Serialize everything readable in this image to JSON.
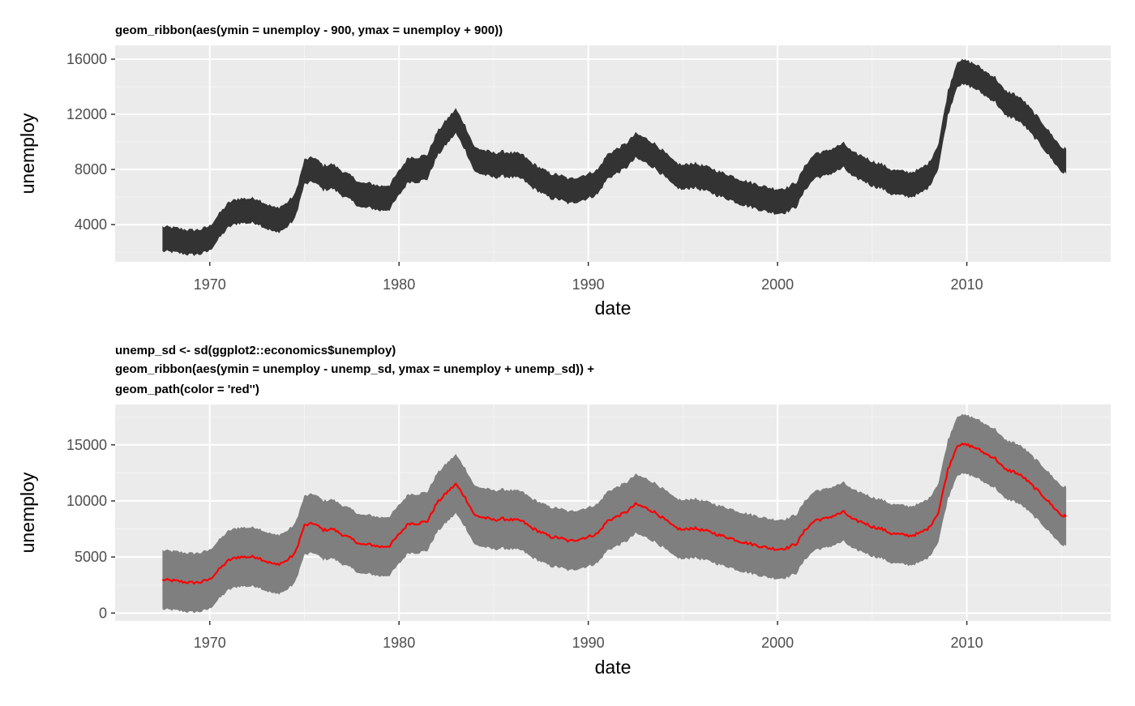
{
  "theme": {
    "panel_bg": "#ebebeb",
    "grid_major": "#ffffff",
    "grid_minor": "#f4f4f4",
    "ribbon_dark": "#333333",
    "ribbon_grey": "#7f7f7f",
    "line_red": "#ff0000",
    "tick_text": "#4d4d4d",
    "tick_mark": "#333333"
  },
  "chart_data": [
    {
      "type": "area",
      "title_lines": [
        "geom_ribbon(aes(ymin = unemploy - 900, ymax = unemploy + 900))"
      ],
      "xlabel": "date",
      "ylabel": "unemploy",
      "x_axis": "date",
      "xlim": [
        1965.0,
        2017.6
      ],
      "ylim": [
        1300,
        17000
      ],
      "xticks": [
        1970,
        1980,
        1990,
        2000,
        2010
      ],
      "xtick_labels": [
        "1970",
        "1980",
        "1990",
        "2000",
        "2010"
      ],
      "yticks": [
        4000,
        8000,
        12000,
        16000
      ],
      "ytick_labels": [
        "4000",
        "8000",
        "12000",
        "16000"
      ],
      "grid": true,
      "legend": "none",
      "band_offset": 900,
      "series": [
        {
          "role": "ribbon",
          "color": "#333333"
        }
      ]
    },
    {
      "type": "area",
      "title_lines": [
        "unemp_sd <- sd(ggplot2::economics$unemploy)",
        " geom_ribbon(aes(ymin = unemploy - unemp_sd, ymax = unemploy + unemp_sd)) +",
        "  geom_path(color = 'red'')"
      ],
      "xlabel": "date",
      "ylabel": "unemploy",
      "x_axis": "date",
      "xlim": [
        1965.0,
        2017.6
      ],
      "ylim": [
        -700,
        18600
      ],
      "xticks": [
        1970,
        1980,
        1990,
        2000,
        2010
      ],
      "xtick_labels": [
        "1970",
        "1980",
        "1990",
        "2000",
        "2010"
      ],
      "yticks": [
        0,
        5000,
        10000,
        15000
      ],
      "ytick_labels": [
        "0",
        "5000",
        "10000",
        "15000"
      ],
      "grid": true,
      "legend": "none",
      "band_offset": 2630,
      "series": [
        {
          "role": "ribbon",
          "color": "#7f7f7f"
        },
        {
          "role": "line",
          "color": "#ff0000"
        }
      ]
    }
  ],
  "unemploy_series": {
    "date": [
      1967.5,
      1968.0,
      1968.5,
      1969.0,
      1969.5,
      1970.0,
      1970.5,
      1971.0,
      1971.5,
      1972.0,
      1972.5,
      1973.0,
      1973.5,
      1974.0,
      1974.5,
      1975.0,
      1975.5,
      1976.0,
      1976.5,
      1977.0,
      1977.5,
      1978.0,
      1978.5,
      1979.0,
      1979.5,
      1980.0,
      1980.5,
      1981.0,
      1981.5,
      1982.0,
      1982.5,
      1983.0,
      1983.5,
      1984.0,
      1984.5,
      1985.0,
      1985.5,
      1986.0,
      1986.5,
      1987.0,
      1987.5,
      1988.0,
      1988.5,
      1989.0,
      1989.5,
      1990.0,
      1990.5,
      1991.0,
      1991.5,
      1992.0,
      1992.5,
      1993.0,
      1993.5,
      1994.0,
      1994.5,
      1995.0,
      1995.5,
      1996.0,
      1996.5,
      1997.0,
      1997.5,
      1998.0,
      1998.5,
      1999.0,
      1999.5,
      2000.0,
      2000.5,
      2001.0,
      2001.5,
      2002.0,
      2002.5,
      2003.0,
      2003.5,
      2004.0,
      2004.5,
      2005.0,
      2005.5,
      2006.0,
      2006.5,
      2007.0,
      2007.5,
      2008.0,
      2008.5,
      2009.0,
      2009.5,
      2010.0,
      2010.5,
      2011.0,
      2011.5,
      2012.0,
      2012.5,
      2013.0,
      2013.5,
      2014.0,
      2014.5,
      2015.0,
      2015.25
    ],
    "unemploy": [
      2950,
      2900,
      2800,
      2700,
      2750,
      3000,
      3900,
      4700,
      5000,
      5000,
      5000,
      4600,
      4300,
      4600,
      5300,
      7800,
      8000,
      7400,
      7500,
      7000,
      6600,
      6100,
      6100,
      5900,
      6000,
      7000,
      8000,
      8000,
      8200,
      9800,
      10700,
      11500,
      10300,
      8700,
      8500,
      8300,
      8400,
      8300,
      8200,
      7600,
      7200,
      6800,
      6700,
      6400,
      6600,
      6800,
      7100,
      8200,
      8600,
      9000,
      9700,
      9400,
      9000,
      8400,
      7700,
      7400,
      7600,
      7400,
      7200,
      6900,
      6700,
      6400,
      6200,
      6000,
      5800,
      5700,
      5800,
      6200,
      7500,
      8300,
      8400,
      8700,
      9000,
      8300,
      8100,
      7700,
      7500,
      7100,
      7000,
      6900,
      7100,
      7600,
      9000,
      12800,
      15000,
      15000,
      14700,
      14200,
      13800,
      12800,
      12600,
      12100,
      11300,
      10500,
      9600,
      8700,
      8600
    ]
  }
}
